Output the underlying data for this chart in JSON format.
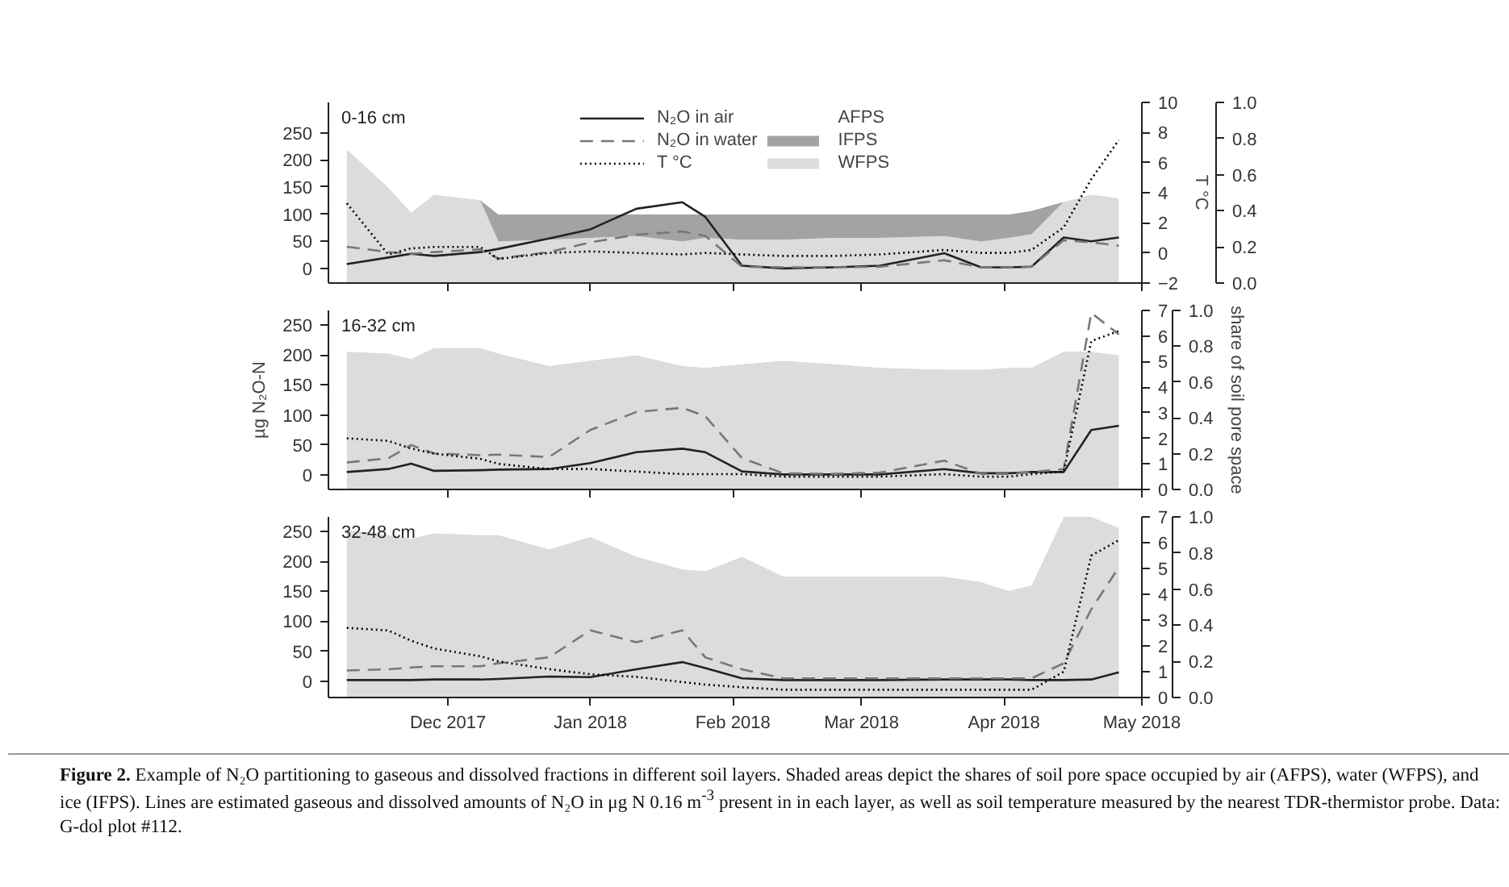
{
  "chart_data": [
    {
      "type": "line",
      "title": "0-16 cm",
      "stacked": true,
      "legend": "top",
      "tick_labels": "y",
      "x": [
        "2017-11-09",
        "2017-11-18",
        "2017-11-23",
        "2017-11-28",
        "2017-12-08",
        "2017-12-12",
        "2017-12-23",
        "2018-01-01",
        "2018-01-11",
        "2018-01-21",
        "2018-01-26",
        "2018-02-03",
        "2018-02-12",
        "2018-02-23",
        "2018-03-05",
        "2018-03-19",
        "2018-03-27",
        "2018-04-02",
        "2018-04-07",
        "2018-04-14",
        "2018-04-20",
        "2018-04-26"
      ],
      "xlim": [
        "2017-11-05",
        "2018-05-01"
      ],
      "xticks": [
        {
          "value": "2017-12-01",
          "label": null
        },
        {
          "value": "2018-01-01",
          "label": null
        },
        {
          "value": "2018-02-01",
          "label": null
        },
        {
          "value": "2018-03-01",
          "label": null
        },
        {
          "value": "2018-04-01",
          "label": null
        },
        {
          "value": "2018-05-01",
          "label": null
        }
      ],
      "ylim": [
        -27,
        306
      ],
      "yticks": [
        0,
        50,
        100,
        150,
        200,
        250
      ],
      "y2label": "T °C",
      "y2lim": [
        -2,
        10
      ],
      "y2ticks": [
        -2,
        0,
        2,
        4,
        6,
        8,
        10
      ],
      "y3lim": [
        0,
        1
      ],
      "y3ticks": [
        {
          "value": 0,
          "label": "0.0"
        },
        {
          "value": 0.2,
          "label": "0.2"
        },
        {
          "value": 0.4,
          "label": "0.4"
        },
        {
          "value": 0.6,
          "label": "0.6"
        },
        {
          "value": 0.8,
          "label": "0.8"
        },
        {
          "value": 1,
          "label": "1.0"
        }
      ],
      "series": [
        {
          "name": "AFPS",
          "type": "area",
          "axis": "y3",
          "color": "#ffffff",
          "values": [
            0.26,
            0.47,
            0.61,
            0.51,
            0.54,
            0.62,
            0.62,
            0.62,
            0.62,
            0.62,
            0.62,
            0.62,
            0.62,
            0.62,
            0.62,
            0.62,
            0.62,
            0.62,
            0.6,
            0.55,
            0.51,
            0.53
          ]
        },
        {
          "name": "IFPS",
          "type": "area",
          "axis": "y3",
          "color": "#a3a3a5",
          "values": [
            0,
            0,
            0,
            0,
            0,
            0.15,
            0.14,
            0.13,
            0.12,
            0.15,
            0.13,
            0.14,
            0.14,
            0.13,
            0.13,
            0.12,
            0.15,
            0.13,
            0.13,
            0,
            0,
            0
          ]
        },
        {
          "name": "WFPS",
          "type": "area",
          "axis": "y3",
          "color": "#dcdcde",
          "values": [
            0.74,
            0.53,
            0.39,
            0.49,
            0.46,
            0.23,
            0.24,
            0.25,
            0.26,
            0.23,
            0.25,
            0.24,
            0.24,
            0.25,
            0.25,
            0.26,
            0.23,
            0.25,
            0.27,
            0.45,
            0.49,
            0.47
          ]
        },
        {
          "name": "N₂O in air",
          "axis": "y",
          "line_style": "solid",
          "color": "#222222",
          "values": [
            8,
            20,
            27,
            23,
            30,
            36,
            55,
            72,
            110,
            122,
            95,
            5,
            0,
            2,
            5,
            28,
            2,
            2,
            3,
            57,
            50,
            57
          ]
        },
        {
          "name": "N₂O in water",
          "axis": "y",
          "line_style": "dashed",
          "color": "#777777",
          "values": [
            40,
            30,
            27,
            30,
            35,
            18,
            30,
            48,
            62,
            68,
            60,
            3,
            2,
            2,
            3,
            15,
            2,
            2,
            3,
            52,
            48,
            42
          ]
        },
        {
          "name": "T °C",
          "axis": "y2",
          "line_style": "dotted",
          "color": "#000000",
          "values": [
            3.3,
            -0.1,
            0.3,
            0.4,
            0.4,
            -0.4,
            0,
            0.1,
            0,
            -0.1,
            0,
            -0.1,
            -0.2,
            -0.2,
            -0.1,
            0.2,
            0,
            0,
            0.2,
            1.7,
            4.9,
            7.5
          ]
        }
      ]
    },
    {
      "type": "line",
      "title": "16-32 cm",
      "stacked": true,
      "tick_labels": "y",
      "ylabel": "µg N₂O-N",
      "y3label": "share of soil pore space",
      "x": [
        "2017-11-09",
        "2017-11-18",
        "2017-11-23",
        "2017-11-28",
        "2017-12-08",
        "2017-12-12",
        "2017-12-23",
        "2018-01-01",
        "2018-01-11",
        "2018-01-21",
        "2018-01-26",
        "2018-02-03",
        "2018-02-12",
        "2018-02-23",
        "2018-03-05",
        "2018-03-19",
        "2018-03-27",
        "2018-04-02",
        "2018-04-07",
        "2018-04-14",
        "2018-04-20",
        "2018-04-26"
      ],
      "xlim": [
        "2017-11-05",
        "2018-05-01"
      ],
      "xticks": [
        {
          "value": "2017-12-01",
          "label": null
        },
        {
          "value": "2018-01-01",
          "label": null
        },
        {
          "value": "2018-02-01",
          "label": null
        },
        {
          "value": "2018-03-01",
          "label": null
        },
        {
          "value": "2018-04-01",
          "label": null
        },
        {
          "value": "2018-05-01",
          "label": null
        }
      ],
      "ylim": [
        -24,
        274
      ],
      "yticks": [
        0,
        50,
        100,
        150,
        200,
        250
      ],
      "y2lim": [
        0,
        7
      ],
      "y2ticks": [
        0,
        1,
        2,
        3,
        4,
        5,
        6,
        7
      ],
      "y3lim": [
        0,
        1
      ],
      "y3ticks": [
        {
          "value": 0,
          "label": "0.0"
        },
        {
          "value": 0.2,
          "label": "0.2"
        },
        {
          "value": 0.4,
          "label": "0.4"
        },
        {
          "value": 0.6,
          "label": "0.6"
        },
        {
          "value": 0.8,
          "label": "0.8"
        },
        {
          "value": 1,
          "label": "1.0"
        }
      ],
      "series": [
        {
          "type": "area",
          "axis": "y3",
          "color": "#ffffff",
          "values": [
            0.23,
            0.24,
            0.27,
            0.21,
            0.21,
            0.24,
            0.31,
            0.28,
            0.25,
            0.31,
            0.32,
            0.3,
            0.28,
            0.3,
            0.32,
            0.33,
            0.33,
            0.32,
            0.32,
            0.23,
            0.23,
            0.25
          ]
        },
        {
          "type": "area",
          "axis": "y3",
          "color": "#dcdcde",
          "values": [
            0.77,
            0.76,
            0.73,
            0.79,
            0.79,
            0.76,
            0.69,
            0.72,
            0.75,
            0.69,
            0.68,
            0.7,
            0.72,
            0.7,
            0.68,
            0.67,
            0.67,
            0.68,
            0.68,
            0.77,
            0.77,
            0.75
          ]
        },
        {
          "axis": "y",
          "line_style": "solid",
          "color": "#222222",
          "values": [
            5,
            10,
            19,
            7,
            8,
            9,
            10,
            20,
            38,
            44,
            38,
            6,
            1,
            1,
            1,
            10,
            3,
            3,
            5,
            5,
            75,
            82
          ]
        },
        {
          "axis": "y",
          "line_style": "dashed",
          "color": "#777777",
          "values": [
            21,
            28,
            50,
            36,
            33,
            34,
            30,
            75,
            105,
            112,
            98,
            28,
            3,
            2,
            4,
            24,
            2,
            2,
            5,
            10,
            270,
            234
          ]
        },
        {
          "axis": "y2",
          "line_style": "dotted",
          "color": "#000000",
          "values": [
            2.0,
            1.9,
            1.6,
            1.4,
            1.2,
            1.0,
            0.8,
            0.8,
            0.7,
            0.6,
            0.6,
            0.6,
            0.5,
            0.5,
            0.5,
            0.6,
            0.5,
            0.5,
            0.6,
            0.7,
            5.8,
            6.2
          ]
        }
      ]
    },
    {
      "type": "line",
      "title": "32-48 cm",
      "stacked": true,
      "x": [
        "2017-11-09",
        "2017-11-18",
        "2017-11-23",
        "2017-11-28",
        "2017-12-08",
        "2017-12-12",
        "2017-12-23",
        "2018-01-01",
        "2018-01-11",
        "2018-01-21",
        "2018-01-26",
        "2018-02-03",
        "2018-02-12",
        "2018-02-23",
        "2018-03-05",
        "2018-03-19",
        "2018-03-27",
        "2018-04-02",
        "2018-04-07",
        "2018-04-14",
        "2018-04-20",
        "2018-04-26"
      ],
      "xlim": [
        "2017-11-05",
        "2018-05-01"
      ],
      "xticks": [
        {
          "value": "2017-12-01",
          "label": "Dec 2017"
        },
        {
          "value": "2018-01-01",
          "label": "Jan 2018"
        },
        {
          "value": "2018-02-01",
          "label": "Feb 2018"
        },
        {
          "value": "2018-03-01",
          "label": "Mar 2018"
        },
        {
          "value": "2018-04-01",
          "label": "Apr 2018"
        },
        {
          "value": "2018-05-01",
          "label": "May 2018"
        }
      ],
      "ylim": [
        -27,
        274
      ],
      "yticks": [
        0,
        50,
        100,
        150,
        200,
        250
      ],
      "y2lim": [
        0,
        7
      ],
      "y2ticks": [
        0,
        1,
        2,
        3,
        4,
        5,
        6,
        7
      ],
      "y3lim": [
        0,
        1
      ],
      "y3ticks": [
        {
          "value": 0,
          "label": "0.0"
        },
        {
          "value": 0.2,
          "label": "0.2"
        },
        {
          "value": 0.4,
          "label": "0.4"
        },
        {
          "value": 0.6,
          "label": "0.6"
        },
        {
          "value": 0.8,
          "label": "0.8"
        },
        {
          "value": 1,
          "label": "1.0"
        }
      ],
      "annotations": [
        "Figure 2. Example of N₂O partitioning to gaseous and dissolved fractions in different soil layers. Shaded areas depict the shares of soil pore space occupied by air (AFPS), water (WFPS), and ice (IFPS). Lines are estimated gaseous and dissolved amounts of N₂O in μg N 0.16 m$^{-3}$ present in in each layer, as well as soil temperature measured by the nearest TDR-thermistor probe. Data: G-dol plot #112."
      ],
      "series": [
        {
          "type": "area",
          "axis": "y3",
          "color": "#ffffff",
          "values": [
            0.07,
            0.1,
            0.12,
            0.09,
            0.1,
            0.1,
            0.18,
            0.11,
            0.22,
            0.29,
            0.3,
            0.22,
            0.33,
            0.33,
            0.33,
            0.33,
            0.36,
            0.41,
            0.38,
            0,
            0,
            0.06
          ]
        },
        {
          "type": "area",
          "axis": "y3",
          "color": "#dcdcde",
          "values": [
            0.93,
            0.9,
            0.88,
            0.91,
            0.9,
            0.9,
            0.82,
            0.89,
            0.78,
            0.71,
            0.7,
            0.78,
            0.67,
            0.67,
            0.67,
            0.67,
            0.64,
            0.59,
            0.62,
            1.0,
            1.0,
            0.94
          ]
        },
        {
          "axis": "y",
          "line_style": "solid",
          "color": "#222222",
          "values": [
            2,
            2,
            2,
            3,
            3,
            4,
            8,
            7,
            20,
            32,
            22,
            5,
            2,
            2,
            2,
            3,
            3,
            3,
            2,
            2,
            3,
            15
          ]
        },
        {
          "axis": "y",
          "line_style": "dashed",
          "color": "#777777",
          "values": [
            18,
            20,
            23,
            25,
            25,
            30,
            40,
            85,
            65,
            85,
            40,
            20,
            5,
            5,
            5,
            5,
            5,
            5,
            5,
            30,
            120,
            190
          ]
        },
        {
          "axis": "y2",
          "line_style": "dotted",
          "color": "#000000",
          "values": [
            2.7,
            2.6,
            2.2,
            1.9,
            1.6,
            1.4,
            1.1,
            0.9,
            0.8,
            0.6,
            0.5,
            0.4,
            0.3,
            0.3,
            0.3,
            0.3,
            0.3,
            0.3,
            0.3,
            1.0,
            5.5,
            6.1
          ]
        }
      ]
    }
  ]
}
